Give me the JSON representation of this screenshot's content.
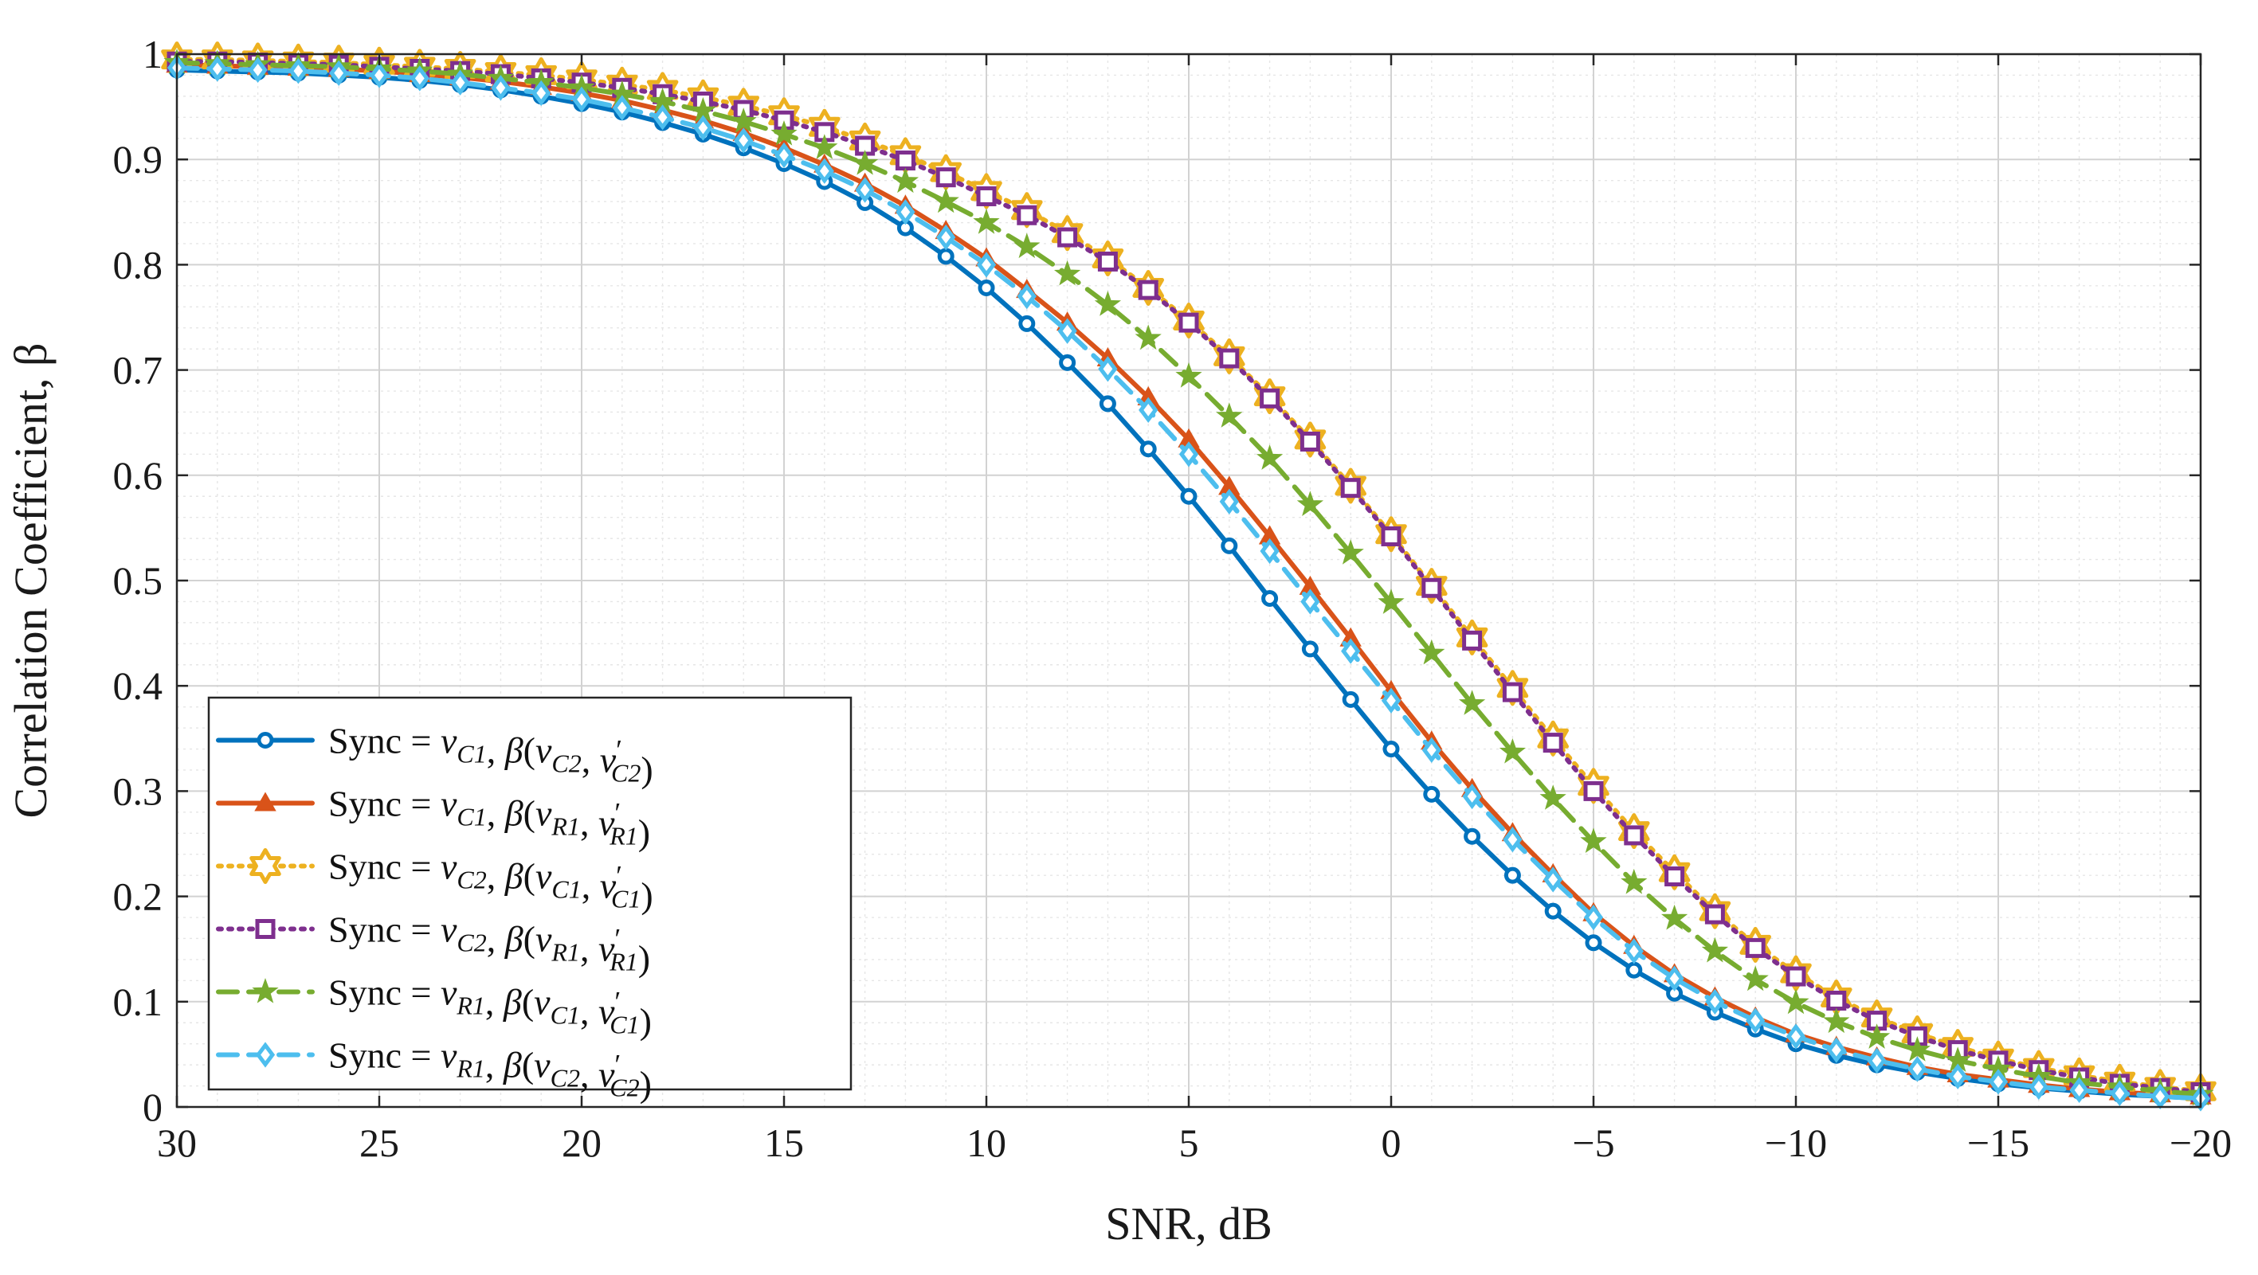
{
  "chart_data": {
    "type": "line",
    "title": "",
    "xlabel": "SNR, dB",
    "ylabel": "Correlation Coefficient, β",
    "xlim": [
      30,
      -20
    ],
    "ylim": [
      0,
      1
    ],
    "xticks": [
      30,
      25,
      20,
      15,
      10,
      5,
      0,
      -5,
      -10,
      -15,
      -20
    ],
    "xtick_labels": [
      "30",
      "25",
      "20",
      "15",
      "10",
      "5",
      "0",
      "−5",
      "−10",
      "−15",
      "−20"
    ],
    "yticks": [
      0,
      0.1,
      0.2,
      0.3,
      0.4,
      0.5,
      0.6,
      0.7,
      0.8,
      0.9,
      1
    ],
    "ytick_labels": [
      "0",
      "0.1",
      "0.2",
      "0.3",
      "0.4",
      "0.5",
      "0.6",
      "0.7",
      "0.8",
      "0.9",
      "1"
    ],
    "grid": true,
    "minor_grid": true,
    "legend_position": "bottom-left",
    "x": [
      30,
      29,
      28,
      27,
      26,
      25,
      24,
      23,
      22,
      21,
      20,
      19,
      18,
      17,
      16,
      15,
      14,
      13,
      12,
      11,
      10,
      9,
      8,
      7,
      6,
      5,
      4,
      3,
      2,
      1,
      0,
      -1,
      -2,
      -3,
      -4,
      -5,
      -6,
      -7,
      -8,
      -9,
      -10,
      -11,
      -12,
      -13,
      -14,
      -15,
      -16,
      -17,
      -18,
      -19,
      -20
    ],
    "series": [
      {
        "name": "Sync = vC1, β(vC2, v'C2)",
        "legend": {
          "pre": "Sync = ",
          "sync_var": "v",
          "sync_sub": "C1",
          "beta_args": [
            {
              "v": "v",
              "sub": "C2",
              "prime": false
            },
            {
              "v": "v",
              "sub": "C2",
              "prime": true
            }
          ]
        },
        "color": "#0072BD",
        "line_style": "solid",
        "marker": "circle",
        "values": [
          0.985,
          0.984,
          0.983,
          0.982,
          0.98,
          0.978,
          0.975,
          0.971,
          0.966,
          0.96,
          0.953,
          0.945,
          0.935,
          0.924,
          0.911,
          0.896,
          0.879,
          0.859,
          0.835,
          0.808,
          0.778,
          0.744,
          0.707,
          0.668,
          0.625,
          0.58,
          0.533,
          0.483,
          0.435,
          0.387,
          0.34,
          0.297,
          0.257,
          0.22,
          0.186,
          0.156,
          0.13,
          0.108,
          0.09,
          0.074,
          0.06,
          0.049,
          0.04,
          0.033,
          0.027,
          0.022,
          0.018,
          0.015,
          0.012,
          0.01,
          0.008
        ]
      },
      {
        "name": "Sync = vC1, β(vR1, v'R1)",
        "legend": {
          "pre": "Sync = ",
          "sync_var": "v",
          "sync_sub": "C1",
          "beta_args": [
            {
              "v": "v",
              "sub": "R1",
              "prime": false
            },
            {
              "v": "v",
              "sub": "R1",
              "prime": true
            }
          ]
        },
        "color": "#D95319",
        "line_style": "solid",
        "marker": "triangle",
        "values": [
          0.99,
          0.989,
          0.988,
          0.987,
          0.986,
          0.984,
          0.981,
          0.978,
          0.974,
          0.969,
          0.963,
          0.956,
          0.947,
          0.937,
          0.925,
          0.911,
          0.895,
          0.877,
          0.856,
          0.832,
          0.806,
          0.776,
          0.745,
          0.711,
          0.674,
          0.634,
          0.589,
          0.542,
          0.494,
          0.445,
          0.395,
          0.347,
          0.302,
          0.26,
          0.221,
          0.184,
          0.153,
          0.126,
          0.104,
          0.085,
          0.069,
          0.057,
          0.047,
          0.038,
          0.031,
          0.026,
          0.021,
          0.017,
          0.014,
          0.012,
          0.01
        ]
      },
      {
        "name": "Sync = vC2, β(vC1, v'C1)",
        "legend": {
          "pre": "Sync = ",
          "sync_var": "v",
          "sync_sub": "C2",
          "beta_args": [
            {
              "v": "v",
              "sub": "C1",
              "prime": false
            },
            {
              "v": "v",
              "sub": "C1",
              "prime": true
            }
          ]
        },
        "color": "#EDB120",
        "line_style": "dotted",
        "marker": "hexagram",
        "values": [
          0.995,
          0.995,
          0.994,
          0.993,
          0.992,
          0.99,
          0.988,
          0.986,
          0.983,
          0.98,
          0.976,
          0.971,
          0.966,
          0.959,
          0.951,
          0.942,
          0.931,
          0.918,
          0.904,
          0.888,
          0.87,
          0.852,
          0.83,
          0.806,
          0.778,
          0.747,
          0.713,
          0.675,
          0.634,
          0.59,
          0.544,
          0.495,
          0.446,
          0.398,
          0.35,
          0.305,
          0.262,
          0.223,
          0.186,
          0.154,
          0.127,
          0.104,
          0.085,
          0.07,
          0.057,
          0.046,
          0.037,
          0.03,
          0.024,
          0.019,
          0.015
        ]
      },
      {
        "name": "Sync = vC2, β(vR1, v'R1)",
        "legend": {
          "pre": "Sync = ",
          "sync_var": "v",
          "sync_sub": "C2",
          "beta_args": [
            {
              "v": "v",
              "sub": "R1",
              "prime": false
            },
            {
              "v": "v",
              "sub": "R1",
              "prime": true
            }
          ]
        },
        "color": "#7E2F8E",
        "line_style": "dotted",
        "marker": "square",
        "values": [
          0.993,
          0.993,
          0.992,
          0.991,
          0.99,
          0.988,
          0.986,
          0.984,
          0.981,
          0.977,
          0.973,
          0.968,
          0.962,
          0.955,
          0.947,
          0.937,
          0.926,
          0.913,
          0.899,
          0.883,
          0.865,
          0.847,
          0.826,
          0.803,
          0.776,
          0.745,
          0.711,
          0.673,
          0.632,
          0.588,
          0.542,
          0.493,
          0.443,
          0.394,
          0.346,
          0.3,
          0.258,
          0.219,
          0.183,
          0.151,
          0.124,
          0.101,
          0.082,
          0.067,
          0.054,
          0.044,
          0.035,
          0.028,
          0.022,
          0.018,
          0.014
        ]
      },
      {
        "name": "Sync = vR1, β(vC1, v'C1)",
        "legend": {
          "pre": "Sync = ",
          "sync_var": "v",
          "sync_sub": "R1",
          "beta_args": [
            {
              "v": "v",
              "sub": "C1",
              "prime": false
            },
            {
              "v": "v",
              "sub": "C1",
              "prime": true
            }
          ]
        },
        "color": "#77AC30",
        "line_style": "dashed",
        "marker": "pentagram",
        "values": [
          0.992,
          0.991,
          0.99,
          0.989,
          0.988,
          0.986,
          0.984,
          0.981,
          0.977,
          0.973,
          0.968,
          0.962,
          0.955,
          0.946,
          0.936,
          0.924,
          0.911,
          0.896,
          0.879,
          0.86,
          0.84,
          0.817,
          0.791,
          0.762,
          0.73,
          0.694,
          0.656,
          0.616,
          0.572,
          0.526,
          0.479,
          0.431,
          0.383,
          0.337,
          0.293,
          0.252,
          0.213,
          0.179,
          0.148,
          0.121,
          0.099,
          0.081,
          0.066,
          0.054,
          0.044,
          0.036,
          0.029,
          0.023,
          0.019,
          0.015,
          0.012
        ]
      },
      {
        "name": "Sync = vR1, β(vC2, v'C2)",
        "legend": {
          "pre": "Sync = ",
          "sync_var": "v",
          "sync_sub": "R1",
          "beta_args": [
            {
              "v": "v",
              "sub": "C2",
              "prime": false
            },
            {
              "v": "v",
              "sub": "C2",
              "prime": true
            }
          ]
        },
        "color": "#4DBEEE",
        "line_style": "dashed",
        "marker": "diamond",
        "values": [
          0.987,
          0.986,
          0.985,
          0.984,
          0.982,
          0.98,
          0.977,
          0.973,
          0.968,
          0.963,
          0.957,
          0.949,
          0.94,
          0.93,
          0.918,
          0.904,
          0.889,
          0.871,
          0.85,
          0.826,
          0.8,
          0.77,
          0.737,
          0.701,
          0.662,
          0.62,
          0.575,
          0.528,
          0.48,
          0.433,
          0.386,
          0.339,
          0.295,
          0.254,
          0.216,
          0.18,
          0.148,
          0.122,
          0.1,
          0.082,
          0.067,
          0.054,
          0.044,
          0.036,
          0.029,
          0.024,
          0.019,
          0.016,
          0.013,
          0.01,
          0.008
        ]
      }
    ]
  }
}
